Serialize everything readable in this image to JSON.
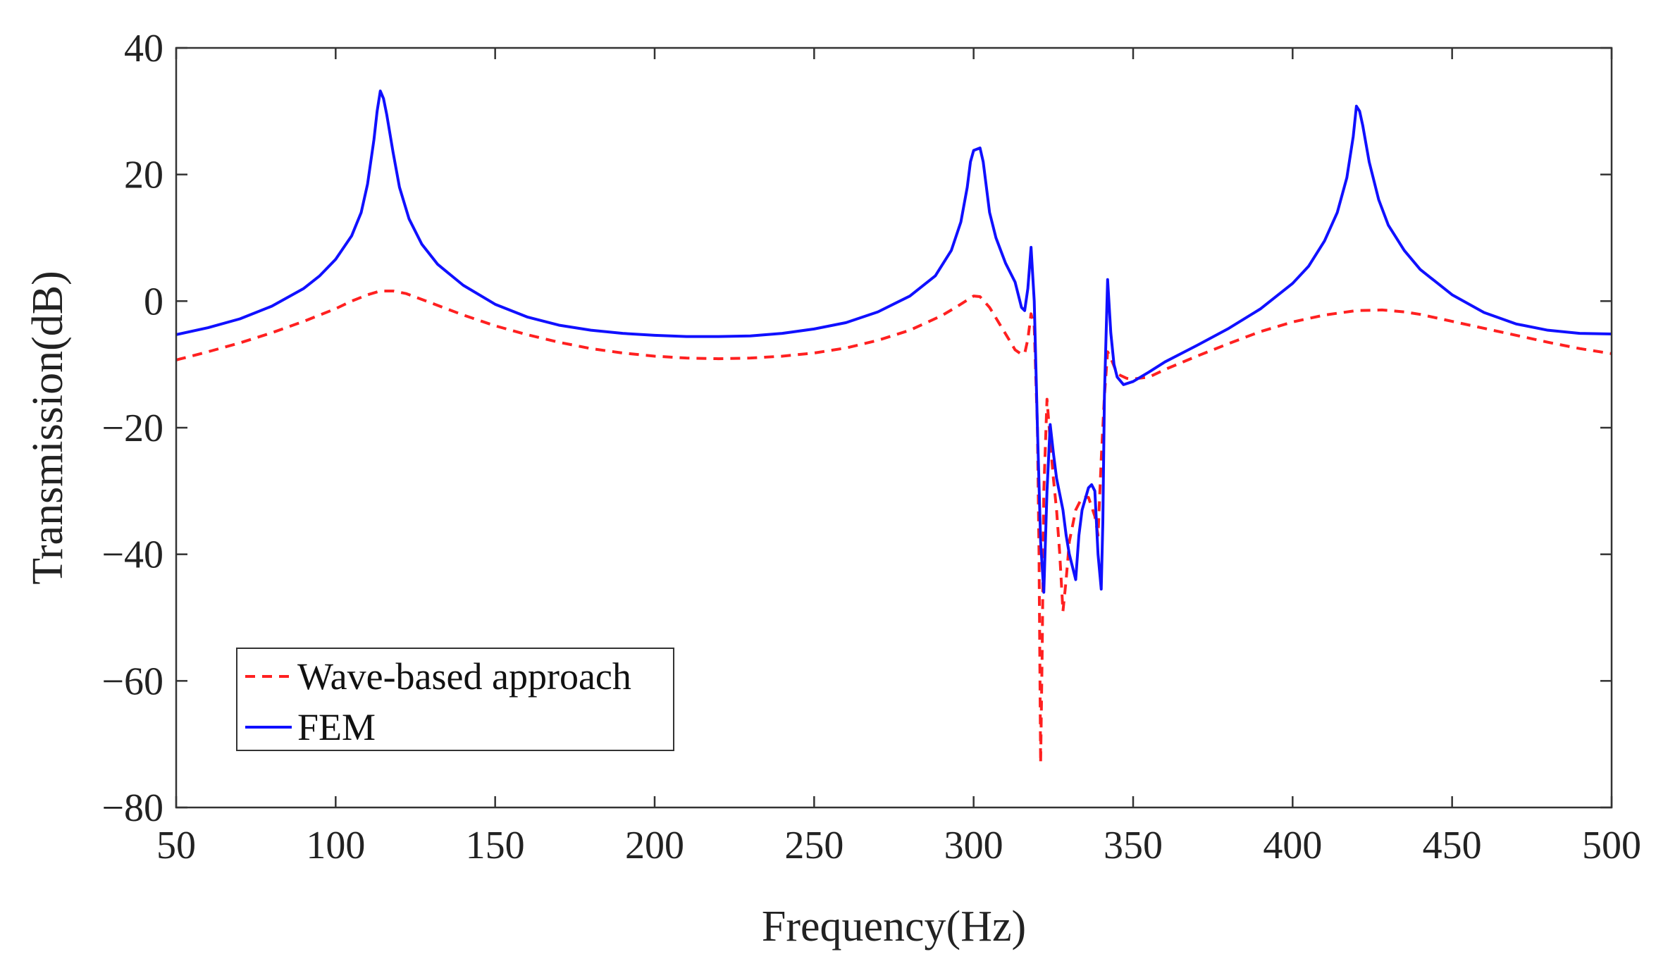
{
  "chart_data": {
    "type": "line",
    "title": "",
    "xlabel": "Frequency(Hz)",
    "ylabel": "Transmission(dB)",
    "xlim": [
      50,
      500
    ],
    "ylim": [
      -80,
      40
    ],
    "xticks": [
      50,
      100,
      150,
      200,
      250,
      300,
      350,
      400,
      450,
      500
    ],
    "yticks": [
      40,
      20,
      0,
      -20,
      -40,
      -60,
      -80
    ],
    "xtick_labels": [
      "50",
      "100",
      "150",
      "200",
      "250",
      "300",
      "350",
      "400",
      "450",
      "500"
    ],
    "ytick_labels": [
      "40",
      "20",
      "0",
      "−20",
      "−40",
      "−60",
      "−80"
    ],
    "grid": false,
    "legend_position": "bottom-left",
    "series": [
      {
        "name": "Wave-based approach",
        "color": "#ff2020",
        "style": "dashed",
        "points": [
          [
            50,
            -9.3
          ],
          [
            60,
            -8.0
          ],
          [
            70,
            -6.6
          ],
          [
            80,
            -5.0
          ],
          [
            90,
            -3.2
          ],
          [
            100,
            -1.2
          ],
          [
            105,
            0.0
          ],
          [
            110,
            1.0
          ],
          [
            114,
            1.6
          ],
          [
            118,
            1.6
          ],
          [
            122,
            1.2
          ],
          [
            130,
            -0.3
          ],
          [
            140,
            -2.2
          ],
          [
            150,
            -3.9
          ],
          [
            160,
            -5.3
          ],
          [
            170,
            -6.5
          ],
          [
            180,
            -7.5
          ],
          [
            190,
            -8.2
          ],
          [
            200,
            -8.7
          ],
          [
            210,
            -9.0
          ],
          [
            220,
            -9.1
          ],
          [
            230,
            -9.0
          ],
          [
            240,
            -8.7
          ],
          [
            250,
            -8.2
          ],
          [
            260,
            -7.4
          ],
          [
            270,
            -6.2
          ],
          [
            280,
            -4.6
          ],
          [
            290,
            -2.3
          ],
          [
            295,
            -0.8
          ],
          [
            300,
            0.8
          ],
          [
            302,
            0.7
          ],
          [
            305,
            -1.0
          ],
          [
            308,
            -3.5
          ],
          [
            311,
            -6.0
          ],
          [
            313,
            -7.7
          ],
          [
            315,
            -8.4
          ],
          [
            316,
            -8.3
          ],
          [
            317,
            -6.0
          ],
          [
            318,
            -2.0
          ],
          [
            319,
            -4.0
          ],
          [
            320,
            -20.0
          ],
          [
            320.5,
            -40.0
          ],
          [
            321,
            -73.0
          ],
          [
            321.5,
            -55.0
          ],
          [
            322,
            -30.0
          ],
          [
            323,
            -15.5
          ],
          [
            324,
            -22.0
          ],
          [
            325,
            -28.0
          ],
          [
            326,
            -33.0
          ],
          [
            327,
            -40.0
          ],
          [
            328,
            -49.0
          ],
          [
            329,
            -44.0
          ],
          [
            330,
            -38.0
          ],
          [
            332,
            -33.0
          ],
          [
            334,
            -31.0
          ],
          [
            336,
            -31.0
          ],
          [
            338,
            -34.0
          ],
          [
            339,
            -37.0
          ],
          [
            340,
            -25.0
          ],
          [
            341,
            -15.0
          ],
          [
            342,
            -8.0
          ],
          [
            343,
            -9.0
          ],
          [
            345,
            -11.5
          ],
          [
            348,
            -12.2
          ],
          [
            350,
            -12.3
          ],
          [
            355,
            -12.0
          ],
          [
            360,
            -10.8
          ],
          [
            370,
            -8.7
          ],
          [
            380,
            -6.7
          ],
          [
            390,
            -4.8
          ],
          [
            400,
            -3.3
          ],
          [
            410,
            -2.2
          ],
          [
            420,
            -1.5
          ],
          [
            428,
            -1.4
          ],
          [
            435,
            -1.7
          ],
          [
            440,
            -2.1
          ],
          [
            450,
            -3.2
          ],
          [
            460,
            -4.3
          ],
          [
            470,
            -5.4
          ],
          [
            480,
            -6.5
          ],
          [
            490,
            -7.5
          ],
          [
            500,
            -8.3
          ]
        ]
      },
      {
        "name": "FEM",
        "color": "#1010ff",
        "style": "solid",
        "points": [
          [
            50,
            -5.3
          ],
          [
            60,
            -4.2
          ],
          [
            70,
            -2.8
          ],
          [
            80,
            -0.8
          ],
          [
            90,
            2.0
          ],
          [
            95,
            4.0
          ],
          [
            100,
            6.6
          ],
          [
            105,
            10.3
          ],
          [
            108,
            14.0
          ],
          [
            110,
            18.5
          ],
          [
            112,
            25.5
          ],
          [
            113,
            30.0
          ],
          [
            114,
            33.2
          ],
          [
            115,
            32.0
          ],
          [
            116,
            29.5
          ],
          [
            118,
            23.5
          ],
          [
            120,
            18.0
          ],
          [
            123,
            13.0
          ],
          [
            127,
            9.0
          ],
          [
            132,
            5.8
          ],
          [
            140,
            2.5
          ],
          [
            150,
            -0.5
          ],
          [
            160,
            -2.5
          ],
          [
            170,
            -3.8
          ],
          [
            180,
            -4.6
          ],
          [
            190,
            -5.1
          ],
          [
            200,
            -5.4
          ],
          [
            210,
            -5.6
          ],
          [
            220,
            -5.6
          ],
          [
            230,
            -5.5
          ],
          [
            240,
            -5.1
          ],
          [
            250,
            -4.4
          ],
          [
            260,
            -3.4
          ],
          [
            270,
            -1.7
          ],
          [
            280,
            0.8
          ],
          [
            288,
            4.0
          ],
          [
            293,
            8.0
          ],
          [
            296,
            12.5
          ],
          [
            298,
            18.0
          ],
          [
            299,
            22.0
          ],
          [
            300,
            23.8
          ],
          [
            301,
            24.0
          ],
          [
            302,
            24.2
          ],
          [
            303,
            22.0
          ],
          [
            304,
            18.0
          ],
          [
            305,
            14.0
          ],
          [
            307,
            10.0
          ],
          [
            310,
            6.0
          ],
          [
            313,
            3.0
          ],
          [
            315,
            -1.0
          ],
          [
            316,
            -1.5
          ],
          [
            317,
            2.0
          ],
          [
            318,
            8.5
          ],
          [
            319,
            0.0
          ],
          [
            320,
            -20.0
          ],
          [
            321,
            -38.0
          ],
          [
            322,
            -46.0
          ],
          [
            323,
            -30.0
          ],
          [
            324,
            -19.5
          ],
          [
            325,
            -24.0
          ],
          [
            326,
            -28.0
          ],
          [
            327,
            -30.5
          ],
          [
            328,
            -33.0
          ],
          [
            329,
            -37.0
          ],
          [
            330,
            -40.0
          ],
          [
            331,
            -42.0
          ],
          [
            332,
            -44.0
          ],
          [
            333,
            -37.0
          ],
          [
            334,
            -33.0
          ],
          [
            336,
            -29.5
          ],
          [
            337,
            -29.0
          ],
          [
            338,
            -30.0
          ],
          [
            339,
            -40.0
          ],
          [
            340,
            -45.5
          ],
          [
            340.5,
            -35.0
          ],
          [
            341,
            -15.0
          ],
          [
            342,
            3.4
          ],
          [
            343,
            -5.0
          ],
          [
            344,
            -10.0
          ],
          [
            345,
            -12.0
          ],
          [
            347,
            -13.2
          ],
          [
            350,
            -12.7
          ],
          [
            355,
            -11.2
          ],
          [
            360,
            -9.6
          ],
          [
            370,
            -7.0
          ],
          [
            380,
            -4.3
          ],
          [
            390,
            -1.2
          ],
          [
            400,
            2.8
          ],
          [
            405,
            5.5
          ],
          [
            410,
            9.5
          ],
          [
            414,
            14.0
          ],
          [
            417,
            19.5
          ],
          [
            419,
            26.0
          ],
          [
            420,
            30.8
          ],
          [
            421,
            30.0
          ],
          [
            422,
            27.7
          ],
          [
            424,
            22.0
          ],
          [
            427,
            16.0
          ],
          [
            430,
            12.0
          ],
          [
            435,
            8.0
          ],
          [
            440,
            5.0
          ],
          [
            450,
            1.0
          ],
          [
            460,
            -1.8
          ],
          [
            470,
            -3.6
          ],
          [
            480,
            -4.6
          ],
          [
            490,
            -5.1
          ],
          [
            500,
            -5.2
          ]
        ]
      }
    ]
  }
}
